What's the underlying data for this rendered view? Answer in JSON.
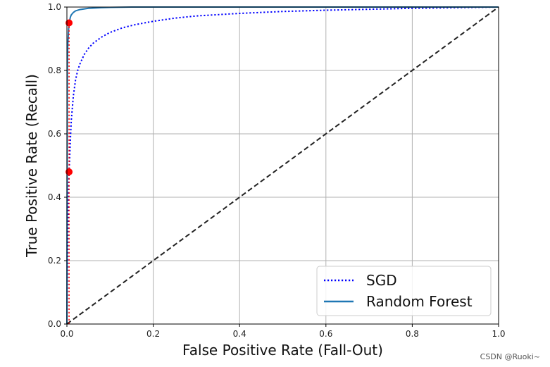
{
  "chart_data": {
    "type": "line",
    "xlabel": "False Positive Rate (Fall-Out)",
    "ylabel": "True Positive Rate (Recall)",
    "xlim": [
      0,
      1
    ],
    "ylim": [
      0,
      1
    ],
    "xticks": [
      "0.0",
      "0.2",
      "0.4",
      "0.6",
      "0.8",
      "1.0"
    ],
    "yticks": [
      "0.0",
      "0.2",
      "0.4",
      "0.6",
      "0.8",
      "1.0"
    ],
    "grid": true,
    "legend_position": "bottom-right",
    "series": [
      {
        "name": "SGD",
        "color": "#0000ff",
        "style": "dotted",
        "x": [
          0,
          0.002,
          0.005,
          0.008,
          0.01,
          0.015,
          0.02,
          0.025,
          0.03,
          0.04,
          0.05,
          0.06,
          0.08,
          0.1,
          0.13,
          0.16,
          0.2,
          0.25,
          0.3,
          0.4,
          0.5,
          0.6,
          0.7,
          0.8,
          0.9,
          1.0
        ],
        "y": [
          0,
          0.3,
          0.48,
          0.58,
          0.64,
          0.72,
          0.77,
          0.8,
          0.82,
          0.85,
          0.87,
          0.885,
          0.905,
          0.92,
          0.935,
          0.945,
          0.955,
          0.965,
          0.972,
          0.98,
          0.986,
          0.99,
          0.993,
          0.996,
          0.998,
          1.0
        ]
      },
      {
        "name": "Random Forest",
        "color": "#1f77b4",
        "style": "solid",
        "x": [
          0,
          0.001,
          0.002,
          0.004,
          0.006,
          0.008,
          0.01,
          0.015,
          0.02,
          0.03,
          0.05,
          0.08,
          0.1,
          0.15,
          0.2,
          0.4,
          0.6,
          0.8,
          1.0
        ],
        "y": [
          0,
          0.8,
          0.88,
          0.93,
          0.955,
          0.968,
          0.975,
          0.983,
          0.988,
          0.992,
          0.996,
          0.998,
          0.999,
          1.0,
          1.0,
          1.0,
          1.0,
          1.0,
          1.0
        ]
      },
      {
        "name": "",
        "color": "#222222",
        "style": "dashed",
        "x": [
          0,
          1
        ],
        "y": [
          0,
          1
        ]
      }
    ],
    "markers": [
      {
        "x": 0.005,
        "y": 0.95,
        "color": "#ff0000"
      },
      {
        "x": 0.005,
        "y": 0.48,
        "color": "#ff0000"
      }
    ],
    "threshold_lines": [
      {
        "x": 0.005,
        "y_from": 0,
        "y_to": 0.95,
        "color": "#ff0000",
        "style": "dotted"
      }
    ]
  },
  "watermark": "CSDN @Ruoki~"
}
